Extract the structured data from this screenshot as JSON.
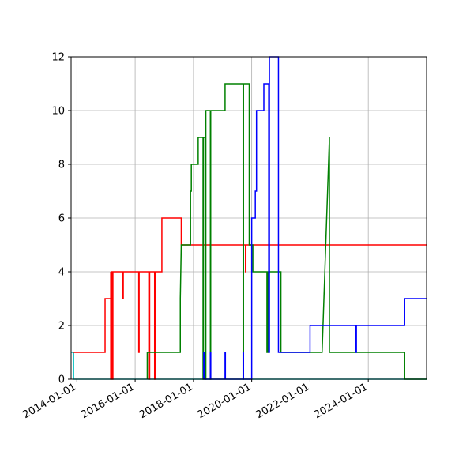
{
  "chart_data": {
    "type": "line",
    "title": "",
    "xlabel": "",
    "ylabel": "",
    "x_axis_type": "date",
    "xlim": [
      "2013-10-20",
      "2026-01-01"
    ],
    "ylim": [
      0,
      12
    ],
    "grid": true,
    "x_tick_labels": [
      "2014-01-01",
      "2016-01-01",
      "2018-01-01",
      "2020-01-01",
      "2022-01-01",
      "2024-01-01"
    ],
    "y_tick_labels": [
      "0",
      "2",
      "4",
      "6",
      "8",
      "10",
      "12"
    ],
    "series": [
      {
        "color": "#00bfbf",
        "points": [
          [
            "2013-10-20",
            1
          ],
          [
            "2013-11-20",
            1
          ],
          [
            "2013-11-20",
            0
          ],
          [
            "2026-01-01",
            0
          ]
        ]
      },
      {
        "color": "#ff0000",
        "points": [
          [
            "2013-11-20",
            1
          ],
          [
            "2014-12-20",
            1
          ],
          [
            "2014-12-20",
            3
          ],
          [
            "2015-03-01",
            3
          ],
          [
            "2015-03-01",
            4
          ],
          [
            "2015-03-01",
            0
          ],
          [
            "2015-03-06",
            0
          ],
          [
            "2015-03-06",
            4
          ],
          [
            "2015-03-10",
            4
          ],
          [
            "2015-03-10",
            0
          ],
          [
            "2015-03-18",
            0
          ],
          [
            "2015-03-18",
            4
          ],
          [
            "2015-03-22",
            4
          ],
          [
            "2015-03-22",
            0
          ],
          [
            "2015-03-28",
            0
          ],
          [
            "2015-03-28",
            4
          ],
          [
            "2015-08-01",
            4
          ],
          [
            "2015-08-01",
            3
          ],
          [
            "2015-08-05",
            3
          ],
          [
            "2015-08-05",
            4
          ],
          [
            "2016-02-15",
            4
          ],
          [
            "2016-02-15",
            1
          ],
          [
            "2016-02-20",
            1
          ],
          [
            "2016-02-20",
            4
          ],
          [
            "2016-06-20",
            4
          ],
          [
            "2016-06-20",
            0
          ],
          [
            "2016-07-01",
            0
          ],
          [
            "2016-07-01",
            4
          ],
          [
            "2016-09-01",
            4
          ],
          [
            "2016-09-01",
            0
          ],
          [
            "2016-09-12",
            0
          ],
          [
            "2016-09-12",
            4
          ],
          [
            "2016-12-01",
            4
          ],
          [
            "2016-12-01",
            6
          ],
          [
            "2017-08-01",
            6
          ],
          [
            "2017-08-01",
            5
          ],
          [
            "2019-10-15",
            5
          ],
          [
            "2019-10-15",
            4
          ],
          [
            "2019-10-20",
            4
          ],
          [
            "2019-10-20",
            5
          ],
          [
            "2026-01-01",
            5
          ]
        ]
      },
      {
        "color": "#008000",
        "points": [
          [
            "2016-06-01",
            0
          ],
          [
            "2016-06-01",
            1
          ],
          [
            "2017-07-20",
            1
          ],
          [
            "2017-07-20",
            3
          ],
          [
            "2017-08-01",
            5
          ],
          [
            "2017-11-25",
            5
          ],
          [
            "2017-11-25",
            7
          ],
          [
            "2017-12-05",
            7
          ],
          [
            "2017-12-05",
            8
          ],
          [
            "2018-03-01",
            8
          ],
          [
            "2018-03-01",
            9
          ],
          [
            "2018-05-01",
            9
          ],
          [
            "2018-05-01",
            0
          ],
          [
            "2018-05-06",
            0
          ],
          [
            "2018-05-06",
            9
          ],
          [
            "2018-06-01",
            9
          ],
          [
            "2018-06-01",
            0
          ],
          [
            "2018-06-05",
            0
          ],
          [
            "2018-06-05",
            10
          ],
          [
            "2018-08-01",
            10
          ],
          [
            "2018-08-01",
            0
          ],
          [
            "2018-08-05",
            0
          ],
          [
            "2018-08-05",
            10
          ],
          [
            "2019-02-01",
            10
          ],
          [
            "2019-02-01",
            11
          ],
          [
            "2019-09-15",
            11
          ],
          [
            "2019-09-15",
            0
          ],
          [
            "2019-09-20",
            0
          ],
          [
            "2019-09-20",
            11
          ],
          [
            "2019-12-01",
            11
          ],
          [
            "2019-12-01",
            5
          ],
          [
            "2020-01-15",
            5
          ],
          [
            "2020-01-15",
            4
          ],
          [
            "2020-07-10",
            4
          ],
          [
            "2020-07-10",
            1
          ],
          [
            "2020-07-20",
            1
          ],
          [
            "2020-07-20",
            4
          ],
          [
            "2021-01-01",
            4
          ],
          [
            "2021-01-01",
            1
          ],
          [
            "2022-06-01",
            1
          ],
          [
            "2022-09-01",
            9
          ],
          [
            "2022-09-01",
            1
          ],
          [
            "2025-04-01",
            1
          ],
          [
            "2025-04-01",
            0
          ],
          [
            "2026-01-01",
            0
          ]
        ]
      },
      {
        "color": "#0000ff",
        "points": [
          [
            "2018-05-10",
            0
          ],
          [
            "2018-05-10",
            1
          ],
          [
            "2018-05-16",
            1
          ],
          [
            "2018-05-16",
            0
          ],
          [
            "2018-08-01",
            0
          ],
          [
            "2018-08-01",
            1
          ],
          [
            "2018-08-06",
            1
          ],
          [
            "2018-08-06",
            0
          ],
          [
            "2019-02-01",
            0
          ],
          [
            "2019-02-01",
            1
          ],
          [
            "2019-02-05",
            1
          ],
          [
            "2019-02-05",
            0
          ],
          [
            "2019-09-15",
            0
          ],
          [
            "2019-09-15",
            1
          ],
          [
            "2019-09-20",
            1
          ],
          [
            "2019-09-20",
            0
          ],
          [
            "2020-01-01",
            0
          ],
          [
            "2020-01-01",
            6
          ],
          [
            "2020-02-15",
            6
          ],
          [
            "2020-02-15",
            7
          ],
          [
            "2020-03-01",
            7
          ],
          [
            "2020-03-01",
            10
          ],
          [
            "2020-06-01",
            10
          ],
          [
            "2020-06-01",
            11
          ],
          [
            "2020-08-01",
            11
          ],
          [
            "2020-08-01",
            1
          ],
          [
            "2020-08-10",
            1
          ],
          [
            "2020-08-10",
            12
          ],
          [
            "2020-12-01",
            12
          ],
          [
            "2020-12-01",
            1
          ],
          [
            "2022-01-01",
            1
          ],
          [
            "2022-01-01",
            2
          ],
          [
            "2023-08-01",
            2
          ],
          [
            "2023-08-01",
            1
          ],
          [
            "2023-08-05",
            1
          ],
          [
            "2023-08-05",
            2
          ],
          [
            "2025-04-01",
            2
          ],
          [
            "2025-04-01",
            3
          ],
          [
            "2026-01-01",
            3
          ]
        ]
      }
    ]
  }
}
